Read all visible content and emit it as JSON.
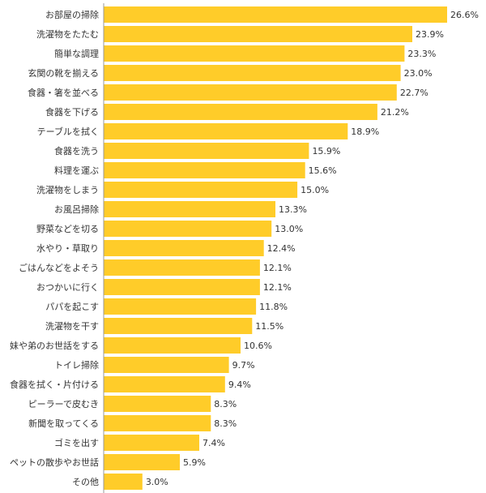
{
  "chart_data": {
    "type": "bar",
    "orientation": "horizontal",
    "categories": [
      "お部屋の掃除",
      "洗濯物をたたむ",
      "簡単な調理",
      "玄関の靴を揃える",
      "食器・箸を並べる",
      "食器を下げる",
      "テーブルを拭く",
      "食器を洗う",
      "料理を運ぶ",
      "洗濯物をしまう",
      "お風呂掃除",
      "野菜などを切る",
      "水やり・草取り",
      "ごはんなどをよそう",
      "おつかいに行く",
      "パパを起こす",
      "洗濯物を干す",
      "妹や弟のお世話をする",
      "トイレ掃除",
      "食器を拭く・片付ける",
      "ピーラーで皮むき",
      "新聞を取ってくる",
      "ゴミを出す",
      "ペットの散歩やお世話",
      "その他"
    ],
    "values": [
      26.6,
      23.9,
      23.3,
      23.0,
      22.7,
      21.2,
      18.9,
      15.9,
      15.6,
      15.0,
      13.3,
      13.0,
      12.4,
      12.1,
      12.1,
      11.8,
      11.5,
      10.6,
      9.7,
      9.4,
      8.3,
      8.3,
      7.4,
      5.9,
      3.0
    ],
    "value_labels": [
      "26.6%",
      "23.9%",
      "23.3%",
      "23.0%",
      "22.7%",
      "21.2%",
      "18.9%",
      "15.9%",
      "15.6%",
      "15.0%",
      "13.3%",
      "13.0%",
      "12.4%",
      "12.1%",
      "12.1%",
      "11.8%",
      "11.5%",
      "10.6%",
      "9.7%",
      "9.4%",
      "8.3%",
      "8.3%",
      "7.4%",
      "5.9%",
      "3.0%"
    ],
    "xlim": [
      0,
      26.6
    ],
    "grid": false,
    "bar_color": "#FFCC29",
    "axis_color": "#999999"
  }
}
